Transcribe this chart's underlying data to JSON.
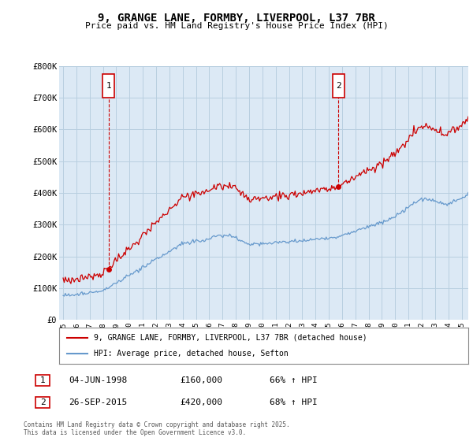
{
  "title_line1": "9, GRANGE LANE, FORMBY, LIVERPOOL, L37 7BR",
  "title_line2": "Price paid vs. HM Land Registry's House Price Index (HPI)",
  "background_color": "#ffffff",
  "plot_bg_color": "#dce9f5",
  "grid_color": "#b8cfe0",
  "red_color": "#cc0000",
  "blue_color": "#6699cc",
  "legend_label_red": "9, GRANGE LANE, FORMBY, LIVERPOOL, L37 7BR (detached house)",
  "legend_label_blue": "HPI: Average price, detached house, Sefton",
  "annotation1_date": "04-JUN-1998",
  "annotation1_price": "£160,000",
  "annotation1_hpi": "66% ↑ HPI",
  "annotation2_date": "26-SEP-2015",
  "annotation2_price": "£420,000",
  "annotation2_hpi": "68% ↑ HPI",
  "footer": "Contains HM Land Registry data © Crown copyright and database right 2025.\nThis data is licensed under the Open Government Licence v3.0.",
  "ylim_max": 800000,
  "yticks": [
    0,
    100000,
    200000,
    300000,
    400000,
    500000,
    600000,
    700000,
    800000
  ],
  "ytick_labels": [
    "£0",
    "£100K",
    "£200K",
    "£300K",
    "£400K",
    "£500K",
    "£600K",
    "£700K",
    "£800K"
  ],
  "xmin": 1995.0,
  "xmax": 2025.5,
  "purchase1_year": 1998.44,
  "purchase1_price": 160000,
  "purchase2_year": 2015.73,
  "purchase2_price": 420000
}
